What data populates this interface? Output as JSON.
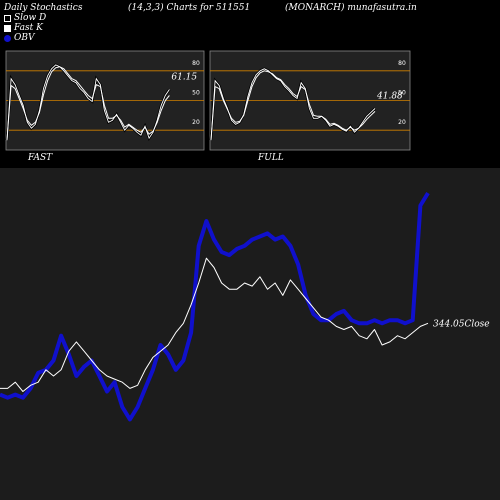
{
  "header": {
    "title": "Daily Stochastics",
    "params": "(14,3,3) Charts for 511551",
    "symbol": "(MONARCH) munafasutra.in"
  },
  "legend": [
    {
      "label": "Slow  D",
      "color": "#ffffff"
    },
    {
      "label": "Fast K",
      "color": "#ffffff"
    },
    {
      "label": "OBV",
      "color": "#1010cc"
    }
  ],
  "colors": {
    "panel_bg": "#222222",
    "level_line": "#d08000",
    "obv": "#1010cc",
    "close": "#ffffff",
    "main_bg": "#1c1c1c"
  },
  "chart_data": [
    {
      "type": "line",
      "panel": "FAST",
      "label": "FAST",
      "ylim": [
        0,
        100
      ],
      "levels": [
        20,
        50,
        80
      ],
      "tick_labels": [
        "80",
        "50",
        "20"
      ],
      "last_value": 61.15,
      "last_value_label": "61.15",
      "series": [
        {
          "values": [
            10,
            72,
            66,
            55,
            45,
            28,
            22,
            26,
            40,
            62,
            75,
            82,
            86,
            84,
            80,
            75,
            70,
            68,
            62,
            58,
            52,
            49,
            72,
            66,
            40,
            28,
            30,
            36,
            28,
            20,
            25,
            22,
            18,
            15,
            24,
            12,
            18,
            30,
            45,
            55,
            61.15
          ]
        },
        {
          "values": [
            10,
            65,
            62,
            52,
            42,
            30,
            25,
            28,
            38,
            56,
            70,
            79,
            83,
            84,
            82,
            77,
            72,
            70,
            65,
            60,
            55,
            52,
            66,
            64,
            45,
            32,
            32,
            35,
            30,
            23,
            26,
            23,
            20,
            18,
            23,
            16,
            19,
            28,
            40,
            50,
            55
          ]
        }
      ]
    },
    {
      "type": "line",
      "panel": "FULL",
      "label": "FULL",
      "ylim": [
        0,
        100
      ],
      "levels": [
        20,
        50,
        80
      ],
      "tick_labels": [
        "80",
        "50",
        "20"
      ],
      "last_value": 41.88,
      "last_value_label": "41.88",
      "series": [
        {
          "values": [
            10,
            70,
            65,
            52,
            42,
            30,
            26,
            28,
            36,
            54,
            68,
            76,
            80,
            82,
            80,
            76,
            72,
            70,
            64,
            60,
            55,
            52,
            68,
            62,
            42,
            32,
            32,
            34,
            30,
            24,
            26,
            24,
            21,
            19,
            24,
            18,
            22,
            28,
            34,
            38,
            41.88
          ]
        },
        {
          "values": [
            10,
            64,
            62,
            50,
            41,
            32,
            28,
            29,
            35,
            50,
            64,
            73,
            78,
            80,
            79,
            77,
            73,
            71,
            66,
            62,
            57,
            54,
            64,
            61,
            46,
            35,
            34,
            34,
            31,
            26,
            27,
            25,
            22,
            20,
            23,
            20,
            22,
            26,
            31,
            35,
            39
          ]
        }
      ]
    },
    {
      "type": "line",
      "panel": "main",
      "close_label": "344.05Close",
      "series": [
        {
          "name": "OBV",
          "values": [
            34,
            33,
            34,
            33,
            36,
            41,
            42,
            45,
            53,
            47,
            40,
            43,
            45,
            40,
            35,
            38,
            30,
            26,
            30,
            36,
            42,
            50,
            47,
            42,
            45,
            54,
            82,
            90,
            84,
            80,
            79,
            81,
            82,
            84,
            85,
            86,
            84,
            85,
            82,
            76,
            66,
            60,
            58,
            58,
            60,
            61,
            58,
            57,
            57,
            58,
            57,
            58,
            58,
            57,
            58,
            95,
            99
          ]
        },
        {
          "name": "Close",
          "values": [
            36,
            36,
            38,
            35,
            37,
            38,
            42,
            40,
            42,
            48,
            51,
            48,
            45,
            42,
            40,
            39,
            38,
            36,
            37,
            42,
            46,
            48,
            50,
            54,
            57,
            63,
            70,
            78,
            75,
            70,
            68,
            68,
            70,
            69,
            72,
            68,
            70,
            66,
            71,
            68,
            65,
            62,
            59,
            58,
            56,
            55,
            56,
            53,
            52,
            55,
            50,
            51,
            53,
            52,
            54,
            56,
            57
          ]
        }
      ],
      "last_close": 344.05
    }
  ],
  "ui": {
    "fast_label": "FAST",
    "full_label": "FULL"
  }
}
